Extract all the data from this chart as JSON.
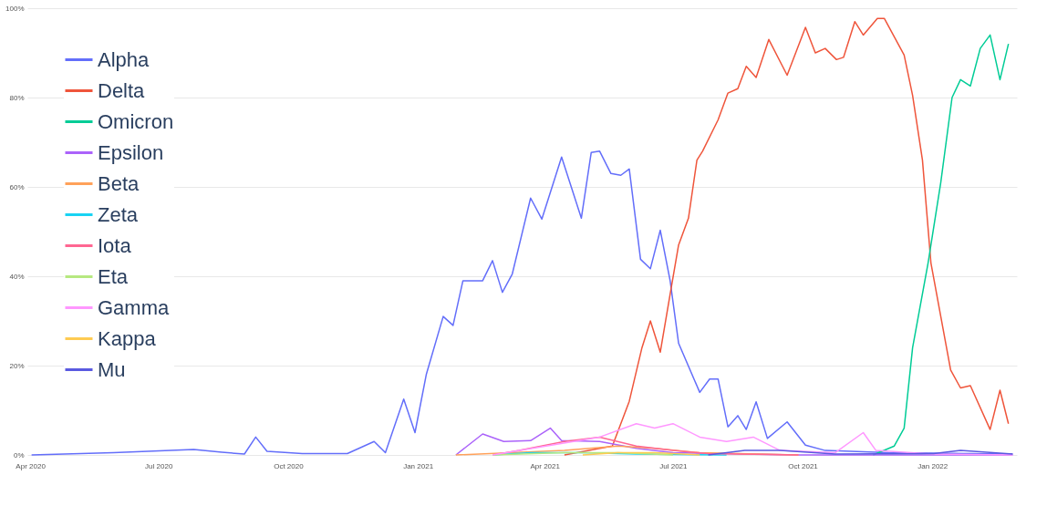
{
  "chart_data": {
    "type": "line",
    "legend": "top left",
    "grid": "y",
    "line_style": "solid",
    "xlim": [
      "2020-03-30",
      "2022-03-02"
    ],
    "ylim": [
      0,
      100
    ],
    "xticks": [
      {
        "value": "2020-04-01",
        "label": "Apr 2020"
      },
      {
        "value": "2020-07-01",
        "label": "Jul 2020"
      },
      {
        "value": "2020-10-01",
        "label": "Oct 2020"
      },
      {
        "value": "2021-01-01",
        "label": "Jan 2021"
      },
      {
        "value": "2021-04-01",
        "label": "Apr 2021"
      },
      {
        "value": "2021-07-01",
        "label": "Jul 2021"
      },
      {
        "value": "2021-10-01",
        "label": "Oct 2021"
      },
      {
        "value": "2022-01-01",
        "label": "Jan 2022"
      }
    ],
    "yticks": [
      {
        "value": 0,
        "label": "0%"
      },
      {
        "value": 20,
        "label": "20%"
      },
      {
        "value": 40,
        "label": "40%"
      },
      {
        "value": 60,
        "label": "60%"
      },
      {
        "value": 80,
        "label": "80%"
      },
      {
        "value": 100,
        "label": "100%"
      }
    ],
    "series": [
      {
        "name": "Alpha",
        "color": "#636efa",
        "x": [
          "2020-04-02",
          "2020-05-30",
          "2020-07-26",
          "2020-08-15",
          "2020-08-31",
          "2020-09-08",
          "2020-09-16",
          "2020-10-11",
          "2020-11-12",
          "2020-12-01",
          "2020-12-09",
          "2020-12-22",
          "2020-12-30",
          "2021-01-07",
          "2021-01-19",
          "2021-01-26",
          "2021-02-02",
          "2021-02-16",
          "2021-02-23",
          "2021-03-02",
          "2021-03-09",
          "2021-03-22",
          "2021-03-30",
          "2021-04-13",
          "2021-04-27",
          "2021-05-04",
          "2021-05-10",
          "2021-05-18",
          "2021-05-25",
          "2021-05-31",
          "2021-06-08",
          "2021-06-15",
          "2021-06-22",
          "2021-06-29",
          "2021-07-05",
          "2021-07-20",
          "2021-07-27",
          "2021-08-02",
          "2021-08-09",
          "2021-08-16",
          "2021-08-22",
          "2021-08-29",
          "2021-09-06",
          "2021-09-20",
          "2021-10-03",
          "2021-10-17",
          "2021-12-01",
          "2022-02-27"
        ],
        "values": [
          0,
          0.5,
          1.2,
          0.6,
          0.2,
          4,
          0.8,
          0.3,
          0.3,
          3,
          0.5,
          12.5,
          5,
          18,
          31,
          29,
          39,
          39,
          43.5,
          36.4,
          40.5,
          57.5,
          52.8,
          66.7,
          53,
          67.7,
          68,
          63,
          62.6,
          64,
          43.8,
          41.7,
          50.3,
          39,
          25,
          14,
          17,
          17,
          6.3,
          8.8,
          5.7,
          11.9,
          3.7,
          7.4,
          2.2,
          1,
          0.5,
          0.2
        ]
      },
      {
        "name": "Delta",
        "color": "#ef553b",
        "x": [
          "2021-04-15",
          "2021-05-19",
          "2021-05-31",
          "2021-06-09",
          "2021-06-15",
          "2021-06-22",
          "2021-06-29",
          "2021-07-05",
          "2021-07-12",
          "2021-07-18",
          "2021-07-22",
          "2021-08-02",
          "2021-08-09",
          "2021-08-16",
          "2021-08-22",
          "2021-08-29",
          "2021-09-07",
          "2021-09-20",
          "2021-10-03",
          "2021-10-10",
          "2021-10-17",
          "2021-10-25",
          "2021-10-30",
          "2021-11-07",
          "2021-11-13",
          "2021-11-23",
          "2021-11-28",
          "2021-12-05",
          "2021-12-12",
          "2021-12-18",
          "2021-12-25",
          "2021-12-31",
          "2022-01-07",
          "2022-01-14",
          "2022-01-21",
          "2022-01-28",
          "2022-02-11",
          "2022-02-18",
          "2022-02-24"
        ],
        "values": [
          0,
          2,
          12,
          24,
          30,
          23,
          36,
          47,
          53,
          66,
          68,
          75,
          81,
          82,
          87,
          84.5,
          93,
          85,
          95.7,
          90,
          91,
          88.5,
          89,
          97,
          94,
          97.7,
          97.7,
          93.6,
          89.5,
          80.5,
          66,
          43,
          31,
          19,
          15,
          15.5,
          5.7,
          14.5,
          7
        ]
      },
      {
        "name": "Omicron",
        "color": "#00cc96",
        "x": [
          "2021-11-20",
          "2021-12-05",
          "2021-12-12",
          "2021-12-18",
          "2021-12-29",
          "2022-01-07",
          "2022-01-15",
          "2022-01-21",
          "2022-01-28",
          "2022-02-04",
          "2022-02-11",
          "2022-02-18",
          "2022-02-24"
        ],
        "values": [
          0,
          2,
          6,
          24,
          43,
          61,
          80,
          84,
          82.6,
          91,
          94,
          84,
          92
        ]
      },
      {
        "name": "Epsilon",
        "color": "#ab63fa",
        "x": [
          "2021-01-28",
          "2021-02-16",
          "2021-03-03",
          "2021-03-22",
          "2021-04-05",
          "2021-04-13",
          "2021-05-10",
          "2021-06-05",
          "2021-07-01",
          "2021-09-28",
          "2022-02-27"
        ],
        "values": [
          0,
          4.7,
          3,
          3.2,
          6,
          3.2,
          3,
          1.5,
          0.5,
          0,
          0
        ]
      },
      {
        "name": "Beta",
        "color": "#ffa15a",
        "x": [
          "2021-01-28",
          "2021-04-15",
          "2021-05-23",
          "2021-06-18",
          "2021-07-20",
          "2021-09-28"
        ],
        "values": [
          0,
          1,
          2,
          1.5,
          0.5,
          0
        ]
      },
      {
        "name": "Zeta",
        "color": "#19d3f3",
        "x": [
          "2021-02-23",
          "2021-03-22",
          "2021-04-28",
          "2021-06-05",
          "2021-08-08"
        ],
        "values": [
          0,
          0.5,
          0.5,
          0.2,
          0
        ]
      },
      {
        "name": "Iota",
        "color": "#ff6692",
        "x": [
          "2021-02-23",
          "2021-03-14",
          "2021-04-15",
          "2021-05-10",
          "2021-06-05",
          "2021-07-01",
          "2021-07-26",
          "2021-09-28"
        ],
        "values": [
          0,
          1,
          3,
          4,
          2,
          1,
          0.3,
          0
        ]
      },
      {
        "name": "Eta",
        "color": "#b6e880",
        "x": [
          "2021-02-23",
          "2021-04-15",
          "2021-05-23",
          "2021-07-01"
        ],
        "values": [
          0,
          0.5,
          0.5,
          0
        ]
      },
      {
        "name": "Gamma",
        "color": "#ff97ff",
        "x": [
          "2021-02-23",
          "2021-04-02",
          "2021-05-10",
          "2021-06-05",
          "2021-06-18",
          "2021-07-01",
          "2021-07-20",
          "2021-08-08",
          "2021-08-27",
          "2021-09-15",
          "2021-10-24",
          "2021-11-13",
          "2021-11-22",
          "2022-01-02",
          "2022-02-27"
        ],
        "values": [
          0,
          2,
          4,
          7,
          6,
          7,
          4,
          3,
          4,
          1,
          0.5,
          5,
          1,
          0.2,
          0
        ]
      },
      {
        "name": "Kappa",
        "color": "#fecb52",
        "x": [
          "2021-04-28",
          "2021-05-23",
          "2021-06-18",
          "2021-07-20"
        ],
        "values": [
          0,
          0.5,
          0.5,
          0
        ]
      },
      {
        "name": "Mu",
        "color": "#5a5ae0",
        "x": [
          "2021-07-26",
          "2021-08-21",
          "2021-09-15",
          "2021-10-24",
          "2022-01-02",
          "2022-01-21",
          "2022-02-27"
        ],
        "values": [
          0,
          1,
          1,
          0.2,
          0.3,
          1,
          0.2
        ]
      }
    ]
  }
}
